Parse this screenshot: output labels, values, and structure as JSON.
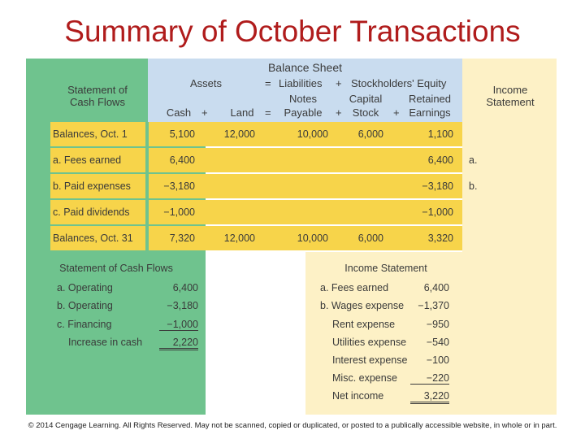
{
  "title": "Summary of October Transactions",
  "balance_sheet": {
    "title": "Balance Sheet",
    "assets_label": "Assets",
    "equals": "=",
    "liabilities_label": "Liabilities",
    "plus": "+",
    "equity_label": "Stockholders' Equity",
    "columns": [
      {
        "line1": "",
        "line2": "Cash",
        "sign": "+"
      },
      {
        "line1": "",
        "line2": "Land",
        "sign": "="
      },
      {
        "line1": "Notes",
        "line2": "Payable",
        "sign": "+"
      },
      {
        "line1": "Capital",
        "line2": "Stock",
        "sign": "+"
      },
      {
        "line1": "Retained",
        "line2": "Earnings",
        "sign": ""
      }
    ]
  },
  "scf_header": "Statement of Cash Flows",
  "is_header": "Income Statement",
  "rows": [
    {
      "label": "Balances, Oct. 1",
      "cash": "5,100",
      "land": "12,000",
      "notes": "10,000",
      "capital": "6,000",
      "retained": "1,100",
      "is_mark": ""
    },
    {
      "label": "a. Fees earned",
      "cash": "6,400",
      "land": "",
      "notes": "",
      "capital": "",
      "retained": "6,400",
      "is_mark": "a."
    },
    {
      "label": "b. Paid expenses",
      "cash": "−3,180",
      "land": "",
      "notes": "",
      "capital": "",
      "retained": "−3,180",
      "is_mark": "b."
    },
    {
      "label": "c. Paid dividends",
      "cash": "−1,000",
      "land": "",
      "notes": "",
      "capital": "",
      "retained": "−1,000",
      "is_mark": ""
    },
    {
      "label": "Balances, Oct. 31",
      "cash": "7,320",
      "land": "12,000",
      "notes": "10,000",
      "capital": "6,000",
      "retained": "3,320",
      "is_mark": ""
    }
  ],
  "cash_flows": {
    "title": "Statement of Cash Flows",
    "items": [
      {
        "label": "a. Operating",
        "value": "6,400"
      },
      {
        "label": "b. Operating",
        "value": "−3,180"
      },
      {
        "label": "c. Financing",
        "value": "−1,000"
      },
      {
        "label": "Increase in cash",
        "value": "2,220"
      }
    ]
  },
  "income_statement": {
    "title": "Income Statement",
    "items": [
      {
        "label": "a. Fees earned",
        "value": "6,400"
      },
      {
        "label": "b. Wages expense",
        "value": "−1,370"
      },
      {
        "label": "Rent expense",
        "value": "−950"
      },
      {
        "label": "Utilities expense",
        "value": "−540"
      },
      {
        "label": "Interest expense",
        "value": "−100"
      },
      {
        "label": "Misc. expense",
        "value": "−220"
      },
      {
        "label": "Net income",
        "value": "3,220"
      }
    ]
  },
  "footer": "© 2014 Cengage Learning. All Rights Reserved. May not be scanned, copied or duplicated, or posted to a publically accessible website, in whole or in part."
}
